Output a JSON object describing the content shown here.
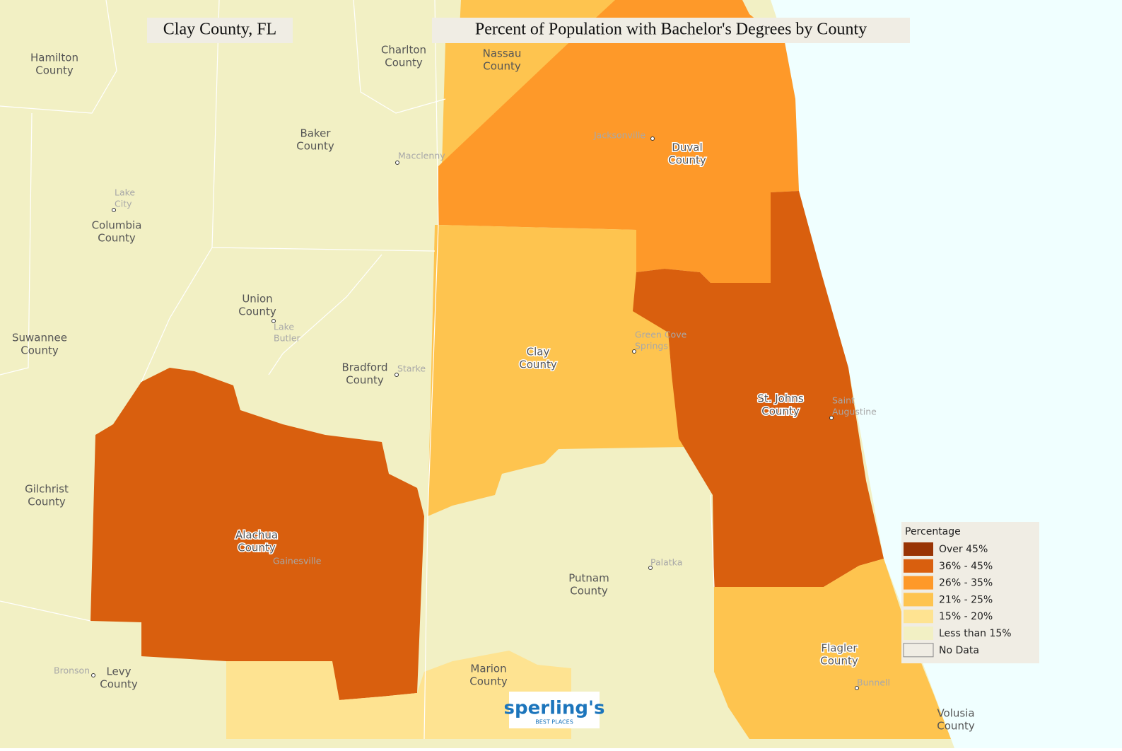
{
  "header": {
    "title_left": "Clay County, FL",
    "title_right": "Percent of Population with Bachelor's Degrees by County"
  },
  "counties": [
    [
      "Hamilton",
      "County"
    ],
    [
      "Charlton",
      "County"
    ],
    [
      "Nassau",
      "County"
    ],
    [
      "Baker",
      "County"
    ],
    [
      "Columbia",
      "County"
    ],
    [
      "Duval",
      "County"
    ],
    [
      "Union",
      "County"
    ],
    [
      "Suwannee",
      "County"
    ],
    [
      "Bradford",
      "County"
    ],
    [
      "Clay",
      "County"
    ],
    [
      "St. Johns",
      "County"
    ],
    [
      "Gilchrist",
      "County"
    ],
    [
      "Alachua",
      "County"
    ],
    [
      "Putnam",
      "County"
    ],
    [
      "Marion",
      "County"
    ],
    [
      "Levy",
      "County"
    ],
    [
      "Flagler",
      "County"
    ],
    [
      "Volusia",
      "County"
    ]
  ],
  "cities": [
    [
      "Macclenny"
    ],
    [
      "Lake",
      "City"
    ],
    [
      "Lake",
      "Butler"
    ],
    [
      "Starke"
    ],
    [
      "Jacksonville"
    ],
    [
      "Green Cove",
      "Springs"
    ],
    [
      "Saint",
      "Augustine"
    ],
    [
      "Palatka"
    ],
    [
      "Gainesville"
    ],
    [
      "Bronson"
    ],
    [
      "Bunnell"
    ]
  ],
  "legend": {
    "title": "Percentage",
    "items": [
      {
        "label": "Over 45%",
        "color": "#993404"
      },
      {
        "label": "36% - 45%",
        "color": "#d95f0e"
      },
      {
        "label": "26% - 35%",
        "color": "#fe9929"
      },
      {
        "label": "21% - 25%",
        "color": "#fec44f"
      },
      {
        "label": "15% - 20%",
        "color": "#fee391"
      },
      {
        "label": "Less than 15%",
        "color": "#f2f0c4"
      },
      {
        "label": "No Data",
        "color": "#f0ede4"
      }
    ]
  },
  "logo": {
    "name": "sperling's",
    "tagline": "BEST PLACES"
  }
}
